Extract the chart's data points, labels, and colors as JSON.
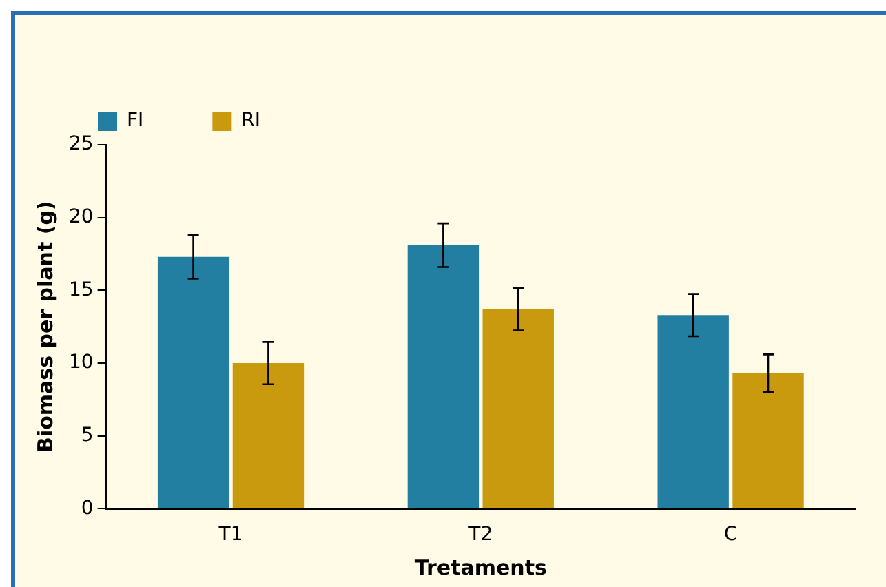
{
  "chart_data": {
    "type": "bar",
    "xlabel": "Tretaments",
    "ylabel": "Biomass per plant (g)",
    "categories": [
      "T1",
      "T2",
      "C"
    ],
    "series": [
      {
        "name": "FI",
        "color": "#237fa1",
        "values": [
          17.3,
          18.1,
          13.3
        ],
        "errors": [
          1.5,
          1.5,
          1.45
        ]
      },
      {
        "name": "RI",
        "color": "#c99a0e",
        "values": [
          10.0,
          13.7,
          9.3
        ],
        "errors": [
          1.45,
          1.45,
          1.3
        ]
      }
    ],
    "ylim": [
      0,
      25
    ],
    "yticks": [
      0,
      5,
      10,
      15,
      20,
      25
    ],
    "grid": false,
    "legend": "top left"
  }
}
